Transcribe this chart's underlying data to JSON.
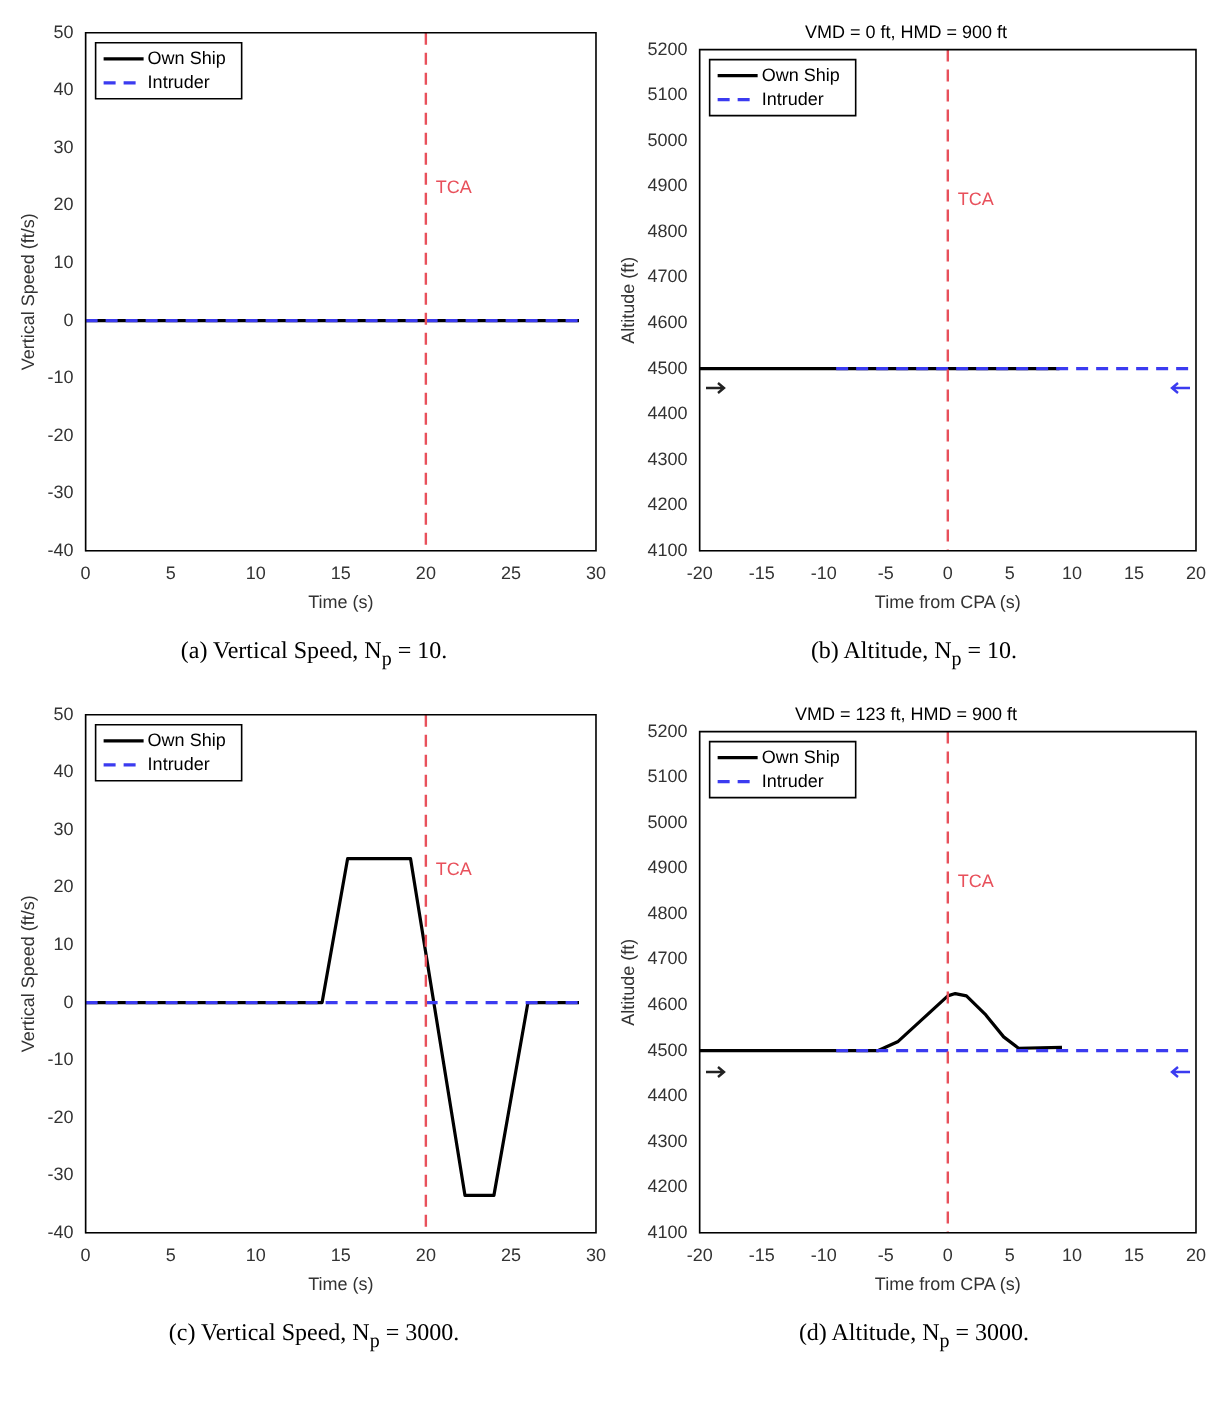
{
  "chart_data": [
    {
      "type": "line",
      "xlabel": "Time (s)",
      "ylabel": "Vertical Speed (ft/s)",
      "xlim": [
        0,
        30
      ],
      "xticks": [
        0,
        5,
        10,
        15,
        20,
        25,
        30
      ],
      "ylim": [
        -40,
        50
      ],
      "yticks": [
        -40,
        -30,
        -20,
        -10,
        0,
        10,
        20,
        30,
        40,
        50
      ],
      "legend": "top left",
      "series": [
        {
          "name": "Own Ship",
          "color": "#000000",
          "line_style": "solid",
          "x": [
            0,
            29
          ],
          "values": [
            0,
            0
          ]
        },
        {
          "name": "Intruder",
          "color": "#3b3bf0",
          "line_style": "dashed",
          "x": [
            0,
            29
          ],
          "values": [
            0,
            0
          ]
        }
      ],
      "ref_lines": [
        {
          "axis": "x",
          "value": 20,
          "label": "TCA",
          "color": "#e8505b",
          "line_style": "dashed"
        }
      ],
      "annotations": [
        "(a) Vertical Speed, N$_{p}$ = 10."
      ]
    },
    {
      "type": "line",
      "title": "VMD = 0 ft, HMD = 900 ft",
      "xlabel": "Time from CPA (s)",
      "ylabel": "Altitude (ft)",
      "xlim": [
        -20,
        20
      ],
      "xticks": [
        -20,
        -15,
        -10,
        -5,
        0,
        5,
        10,
        15,
        20
      ],
      "ylim": [
        4100,
        5200
      ],
      "yticks": [
        4100,
        4200,
        4300,
        4400,
        4500,
        4600,
        4700,
        4800,
        4900,
        5000,
        5100,
        5200
      ],
      "legend": "top left",
      "series": [
        {
          "name": "Own Ship",
          "color": "#000000",
          "line_style": "solid",
          "x": [
            -20,
            9
          ],
          "values": [
            4500,
            4500
          ]
        },
        {
          "name": "Intruder",
          "color": "#3b3bf0",
          "line_style": "dashed",
          "x": [
            -9,
            20
          ],
          "values": [
            4500,
            4500
          ]
        }
      ],
      "ref_lines": [
        {
          "axis": "x",
          "value": 0,
          "label": "TCA",
          "color": "#e8505b",
          "line_style": "dashed"
        }
      ],
      "annotations": [
        "(b) Altitude, N$_{p}$ = 10."
      ]
    },
    {
      "type": "line",
      "xlabel": "Time (s)",
      "ylabel": "Vertical Speed (ft/s)",
      "xlim": [
        0,
        30
      ],
      "xticks": [
        0,
        5,
        10,
        15,
        20,
        25,
        30
      ],
      "ylim": [
        -40,
        50
      ],
      "yticks": [
        -40,
        -30,
        -20,
        -10,
        0,
        10,
        20,
        30,
        40,
        50
      ],
      "legend": "top left",
      "series": [
        {
          "name": "Own Ship",
          "color": "#000000",
          "line_style": "solid",
          "x": [
            0,
            13.9,
            15.4,
            19.1,
            22.3,
            24.0,
            26.0,
            29.0
          ],
          "values": [
            0,
            0,
            25,
            25,
            -33.5,
            -33.5,
            0,
            0
          ]
        },
        {
          "name": "Intruder",
          "color": "#3b3bf0",
          "line_style": "dashed",
          "x": [
            0,
            29
          ],
          "values": [
            0,
            0
          ]
        }
      ],
      "ref_lines": [
        {
          "axis": "x",
          "value": 20,
          "label": "TCA",
          "color": "#e8505b",
          "line_style": "dashed"
        }
      ],
      "annotations": [
        "(c) Vertical Speed, N$_{p}$ = 3000."
      ]
    },
    {
      "type": "line",
      "title": "VMD = 123 ft, HMD = 900 ft",
      "xlabel": "Time from CPA (s)",
      "ylabel": "Altitude (ft)",
      "xlim": [
        -20,
        20
      ],
      "xticks": [
        -20,
        -15,
        -10,
        -5,
        0,
        5,
        10,
        15,
        20
      ],
      "ylim": [
        4100,
        5200
      ],
      "yticks": [
        4100,
        4200,
        4300,
        4400,
        4500,
        4600,
        4700,
        4800,
        4900,
        5000,
        5100,
        5200
      ],
      "legend": "top left",
      "series": [
        {
          "name": "Own Ship",
          "color": "#000000",
          "line_style": "solid",
          "x": [
            -20,
            -5.6,
            -4,
            -2,
            0,
            0.6,
            1.5,
            3,
            4.5,
            5.7,
            9.2
          ],
          "values": [
            4500,
            4500,
            4520,
            4570,
            4620,
            4625,
            4620,
            4580,
            4530,
            4505,
            4507
          ]
        },
        {
          "name": "Intruder",
          "color": "#3b3bf0",
          "line_style": "dashed",
          "x": [
            -9,
            20
          ],
          "values": [
            4500,
            4500
          ]
        }
      ],
      "ref_lines": [
        {
          "axis": "x",
          "value": 0,
          "label": "TCA",
          "color": "#e8505b",
          "line_style": "dashed"
        }
      ],
      "annotations": [
        "(d) Altitude, N$_{p}$ = 3000."
      ]
    }
  ]
}
